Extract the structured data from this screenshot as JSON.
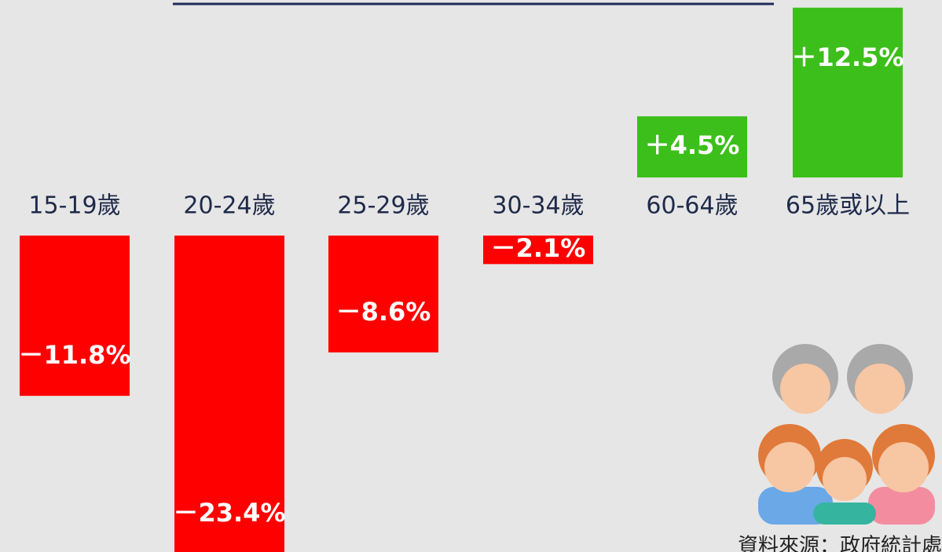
{
  "chart_data": {
    "type": "bar",
    "categories": [
      "15-19歲",
      "20-24歲",
      "25-29歲",
      "30-34歲",
      "60-64歲",
      "65歲或以上"
    ],
    "values": [
      -11.8,
      -23.4,
      -8.6,
      -2.1,
      4.5,
      12.5
    ],
    "value_labels": [
      "－11.8%",
      "－23.4%",
      "－8.6%",
      "－2.1%",
      "＋4.5%",
      "＋12.5%"
    ],
    "colors": {
      "negative": "#ff0000",
      "positive": "#3cbf1a"
    },
    "source": "資料來源：政府統計處"
  }
}
